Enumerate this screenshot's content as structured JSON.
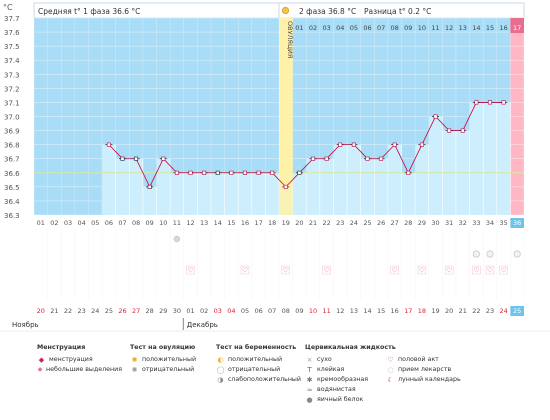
{
  "header": {
    "unit_label": "°C",
    "phase1_label": "Средняя t° 1 фаза 36.6 °C",
    "phase2_label": "2 фаза  36.8 °C",
    "diff_label": "Разница t° 0.2 °C",
    "ovulation_label": "ОВУЛЯЦИЯ"
  },
  "colors": {
    "phase1_bg": "#a9dcf6",
    "phase2_bg": "#a9dcf6",
    "fill": "#cdeefc",
    "line": "#c8003c",
    "ovulation_band": "#fff2a8",
    "menstruation_bg": "#ffb7c6",
    "coverline": "#d6e8a0"
  },
  "cycle_days": [
    "01",
    "02",
    "03",
    "04",
    "05",
    "06",
    "07",
    "08",
    "09",
    "10",
    "11",
    "12",
    "13",
    "14",
    "15",
    "16",
    "17",
    "18",
    "19",
    "20",
    "21",
    "22",
    "23",
    "24",
    "25",
    "26",
    "27",
    "28",
    "29",
    "30",
    "31",
    "32",
    "33",
    "34",
    "35",
    "36"
  ],
  "dates": [
    "20",
    "21",
    "22",
    "23",
    "24",
    "25",
    "26",
    "27",
    "28",
    "29",
    "30",
    "01",
    "02",
    "03",
    "04",
    "05",
    "06",
    "07",
    "08",
    "09",
    "10",
    "11",
    "12",
    "13",
    "14",
    "15",
    "16",
    "17",
    "18",
    "19",
    "20",
    "21",
    "22",
    "23",
    "24",
    "25"
  ],
  "red_dates_index": [
    0,
    6,
    7,
    13,
    14,
    20,
    21,
    27,
    28,
    34
  ],
  "months": {
    "first": "Ноябрь",
    "second": "Декабрь"
  },
  "phase2_days": [
    "01",
    "02",
    "03",
    "04",
    "05",
    "06",
    "07",
    "08",
    "09",
    "10",
    "11",
    "12",
    "13",
    "14",
    "15",
    "16",
    "17"
  ],
  "chart_data": {
    "type": "line",
    "x": [
      6,
      7,
      8,
      9,
      10,
      11,
      12,
      13,
      14,
      15,
      16,
      17,
      18,
      19,
      20,
      21,
      22,
      23,
      24,
      25,
      26,
      27,
      28,
      29,
      30,
      31,
      32,
      33,
      34,
      35
    ],
    "values": [
      36.8,
      36.7,
      36.7,
      36.5,
      36.7,
      36.6,
      36.6,
      36.6,
      36.6,
      36.6,
      36.6,
      36.6,
      36.6,
      36.5,
      36.6,
      36.7,
      36.7,
      36.8,
      36.8,
      36.7,
      36.7,
      36.8,
      36.6,
      36.8,
      37.0,
      36.9,
      36.9,
      37.1,
      37.1,
      37.1
    ],
    "ylim": [
      36.3,
      37.7
    ],
    "yticks": [
      "37.7",
      "37.6",
      "37.5",
      "37.4",
      "37.3",
      "37.2",
      "37.1",
      "37.0",
      "36.9",
      "36.8",
      "36.7",
      "36.6",
      "36.5",
      "36.4",
      "36.3"
    ],
    "ovulation_day": 19,
    "menstruation_day": 36,
    "coverline": 36.6
  },
  "legend": {
    "menstruation": {
      "title": "Менструация",
      "items": [
        "менструация",
        "небольшие выделения"
      ]
    },
    "ovulation_test": {
      "title": "Тест на овуляцию",
      "items": [
        "положительный",
        "отрицательный"
      ]
    },
    "pregnancy_test": {
      "title": "Тест на беременность",
      "items": [
        "положительный",
        "отрицательный",
        "слабоположительный"
      ]
    },
    "cervical": {
      "title": "Цервикальная жидкость",
      "items": [
        "сухо",
        "клейкая",
        "кремообразная",
        "водянистая",
        "яичный белок"
      ]
    },
    "other": {
      "items": [
        "половой акт",
        "прием лекарств",
        "лунный календарь"
      ]
    }
  }
}
